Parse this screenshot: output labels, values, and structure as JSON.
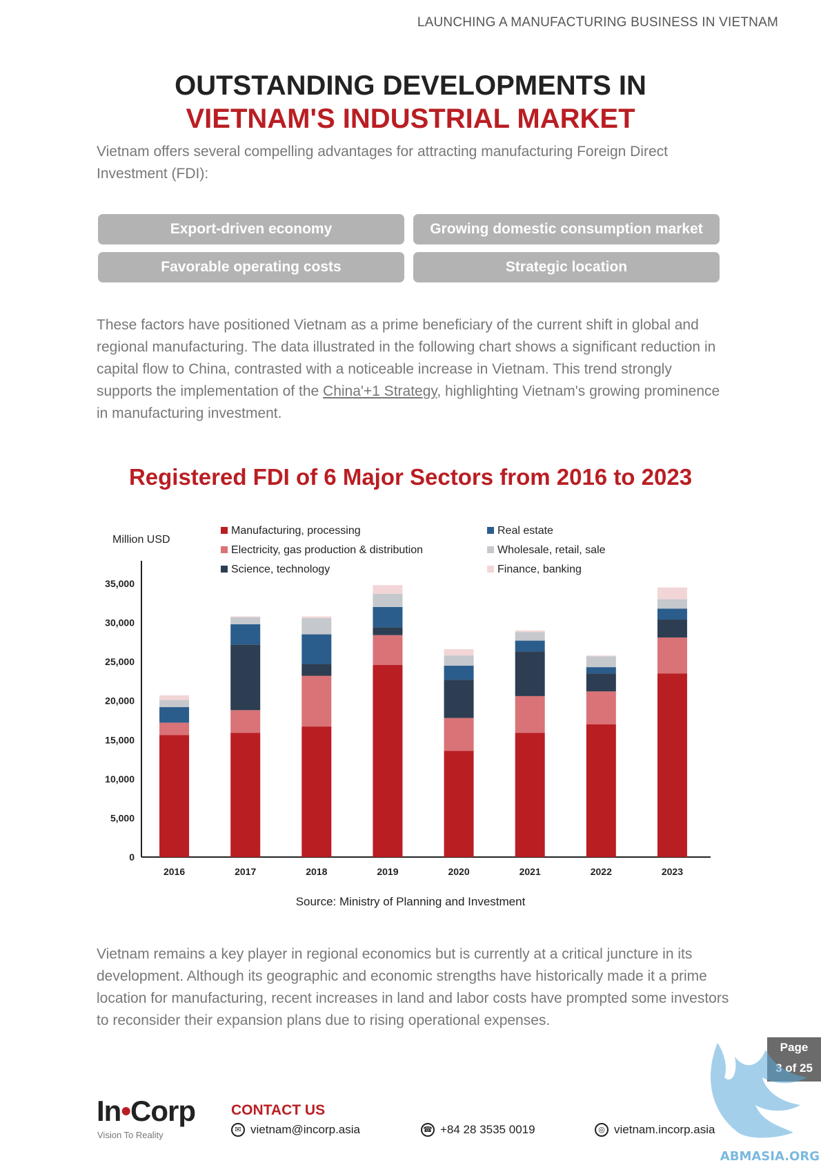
{
  "header": {
    "doc_title": "LAUNCHING A MANUFACTURING BUSINESS IN VIETNAM"
  },
  "heading": {
    "line1": "OUTSTANDING DEVELOPMENTS IN",
    "line2": "VIETNAM'S INDUSTRIAL MARKET"
  },
  "intro": "Vietnam offers several compelling advantages for attracting manufacturing Foreign Direct Investment (FDI):",
  "advantages": [
    "Export-driven economy",
    "Growing domestic consumption market",
    "Favorable operating costs",
    "Strategic location"
  ],
  "para2": {
    "text_before": "These factors have positioned Vietnam as a prime beneficiary of the current shift in global and regional manufacturing. The data illustrated in the following chart shows a significant reduction in capital flow to China, contrasted with a noticeable increase in Vietnam. This trend strongly supports the implementation of the ",
    "link": "China'+1 Strategy",
    "text_after": ", highlighting Vietnam's growing prominence in manufacturing investment."
  },
  "chart_title": "Registered FDI of 6 Major Sectors from 2016 to 2023",
  "chart_data": {
    "type": "bar",
    "stacked": true,
    "title": "Registered FDI of 6 Major Sectors from 2016 to 2023",
    "ylabel": "Million USD",
    "xlabel": "",
    "ylim": [
      0,
      35000
    ],
    "yticks": [
      0,
      5000,
      10000,
      15000,
      20000,
      25000,
      30000,
      35000
    ],
    "ytick_labels": [
      "0",
      "5,000",
      "10,000",
      "15,000",
      "20,000",
      "25,000",
      "30,000",
      "35,000"
    ],
    "grid": false,
    "legend": "top",
    "categories": [
      "2016",
      "2017",
      "2018",
      "2019",
      "2020",
      "2021",
      "2022",
      "2023"
    ],
    "series": [
      {
        "name": "Manufacturing, processing",
        "color": "#b91e23",
        "values": [
          15600,
          15900,
          16700,
          24600,
          13600,
          15900,
          17000,
          23500
        ]
      },
      {
        "name": "Electricity, gas production & distribution",
        "color": "#d97377",
        "values": [
          1600,
          2900,
          6500,
          3800,
          4200,
          4700,
          4200,
          4600
        ]
      },
      {
        "name": "Science, technology",
        "color": "#2d3e52",
        "values": [
          0,
          8400,
          1500,
          1000,
          4900,
          5700,
          2300,
          2300
        ]
      },
      {
        "name": "Real estate",
        "color": "#2b5d8c",
        "values": [
          2000,
          2600,
          3800,
          2600,
          1800,
          1400,
          800,
          1400
        ]
      },
      {
        "name": "Wholesale, retail, sale",
        "color": "#c5c8cd",
        "values": [
          900,
          900,
          2100,
          1700,
          1300,
          1100,
          1400,
          1200
        ]
      },
      {
        "name": "Finance, banking",
        "color": "#f2d6d7",
        "values": [
          600,
          100,
          200,
          1100,
          800,
          200,
          100,
          1500
        ]
      }
    ]
  },
  "source": "Source: Ministry of Planning and Investment",
  "para3": "Vietnam remains a key player in regional economics but is currently at a critical juncture in its development. Although its geographic and economic strengths have historically made it a prime location for manufacturing, recent increases in land and labor costs have prompted some investors to reconsider their expansion plans due to rising operational expenses.",
  "page": {
    "label": "Page",
    "number": "3 of 25"
  },
  "footer": {
    "logo_left": "In",
    "logo_right": "Corp",
    "tagline": "Vision To Reality",
    "contact_title": "CONTACT US",
    "email": "vietnam@incorp.asia",
    "phone": "+84 28 3535 0019",
    "website": "vietnam.incorp.asia"
  },
  "watermark": {
    "text": "ABMASIA.ORG",
    "color": "#5aa7d8"
  }
}
